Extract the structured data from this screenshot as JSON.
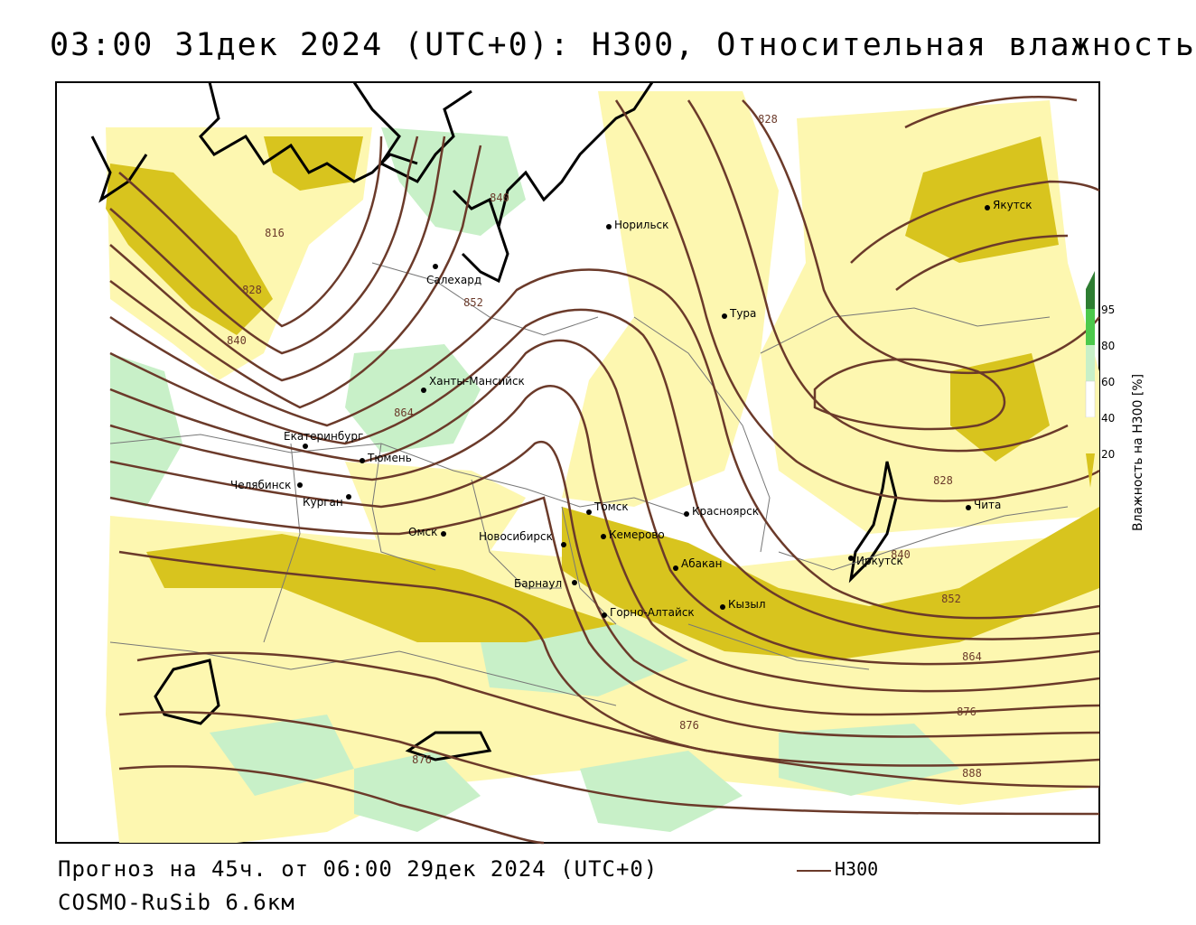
{
  "title": "03:00 31дек 2024 (UTC+0): H300, Относительная влажность",
  "footer": {
    "forecast": "Прогноз на 45ч. от 06:00 29дек 2024 (UTC+0)",
    "model": "COSMO-RuSib 6.6км",
    "line_legend": "H300"
  },
  "legend": {
    "title": "Влажность на H300 [%]",
    "ticks": [
      "95",
      "80",
      "60",
      "40",
      "20"
    ],
    "colors": {
      "c95": "#2e7d32",
      "c80": "#4cc94c",
      "c60": "#c8f0c8",
      "c40": "#ffffff",
      "c20": "#fdf7b0",
      "c0": "#d6c11f"
    }
  },
  "colors": {
    "contour": "#6b3a2a",
    "yellow_light": "#fdf7b0",
    "yellow_dark": "#d8c41e",
    "green_light": "#c8f0c8",
    "coast": "#000000",
    "border": "#777777"
  },
  "cities": [
    "Якутск",
    "Норильск",
    "Салехард",
    "Тура",
    "Ханты-Мансийск",
    "Екатеринбург",
    "Тюмень",
    "Челябинск",
    "Курган",
    "Омск",
    "Новосибирск",
    "Томск",
    "Кемерово",
    "Красноярск",
    "Барнаул",
    "Абакан",
    "Горно-Алтайск",
    "Кызыл",
    "Иркутск",
    "Чита"
  ],
  "contour_labels": [
    "828",
    "816",
    "828",
    "840",
    "840",
    "852",
    "864",
    "828",
    "840",
    "852",
    "864",
    "876",
    "876",
    "876",
    "888"
  ]
}
